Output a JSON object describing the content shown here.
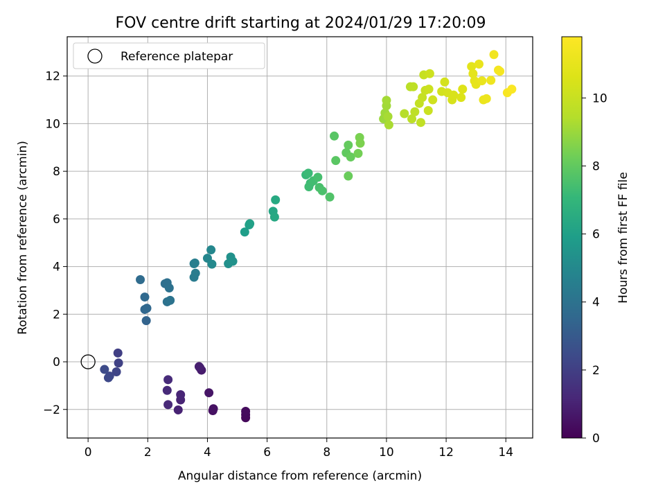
{
  "chart_data": {
    "type": "scatter",
    "title": "FOV centre drift starting at 2024/01/29 17:20:09",
    "xlabel": "Angular distance from reference (arcmin)",
    "ylabel": "Rotation from reference (arcmin)",
    "xlim": [
      -0.7,
      14.9
    ],
    "ylim": [
      -3.2,
      13.65
    ],
    "xticks": [
      0,
      2,
      4,
      6,
      8,
      10,
      12,
      14
    ],
    "yticks": [
      -2,
      0,
      2,
      4,
      6,
      8,
      10,
      12
    ],
    "grid": true,
    "legend": {
      "position": "top-left",
      "entries": [
        "Reference platepar"
      ]
    },
    "reference_point": {
      "x": 0,
      "y": 0,
      "label": "Reference platepar"
    },
    "colorbar": {
      "label": "Hours from first FF file",
      "min": 0,
      "max": 11.8,
      "ticks": [
        0,
        2,
        4,
        6,
        8,
        10
      ],
      "colormap": "viridis"
    },
    "points": [
      {
        "x": 5.28,
        "y": -2.35,
        "h": 0.2
      },
      {
        "x": 5.28,
        "y": -2.22,
        "h": 0.25
      },
      {
        "x": 5.28,
        "y": -2.08,
        "h": 0.3
      },
      {
        "x": 4.18,
        "y": -2.05,
        "h": 0.45
      },
      {
        "x": 4.2,
        "y": -1.97,
        "h": 0.5
      },
      {
        "x": 4.05,
        "y": -1.3,
        "h": 0.6
      },
      {
        "x": 3.8,
        "y": -0.35,
        "h": 0.8
      },
      {
        "x": 3.75,
        "y": -0.25,
        "h": 0.85
      },
      {
        "x": 3.72,
        "y": -0.2,
        "h": 0.9
      },
      {
        "x": 3.02,
        "y": -2.02,
        "h": 1.0
      },
      {
        "x": 3.1,
        "y": -1.6,
        "h": 1.05
      },
      {
        "x": 3.1,
        "y": -1.38,
        "h": 1.1
      },
      {
        "x": 2.68,
        "y": -1.8,
        "h": 1.2
      },
      {
        "x": 2.65,
        "y": -1.2,
        "h": 1.25
      },
      {
        "x": 2.68,
        "y": -0.75,
        "h": 1.3
      },
      {
        "x": 1.0,
        "y": 0.37,
        "h": 2.0
      },
      {
        "x": 1.02,
        "y": -0.05,
        "h": 2.1
      },
      {
        "x": 0.95,
        "y": -0.42,
        "h": 2.2
      },
      {
        "x": 0.72,
        "y": -0.6,
        "h": 2.3
      },
      {
        "x": 0.68,
        "y": -0.67,
        "h": 2.35
      },
      {
        "x": 0.55,
        "y": -0.32,
        "h": 2.45
      },
      {
        "x": 1.95,
        "y": 1.73,
        "h": 3.4
      },
      {
        "x": 1.9,
        "y": 2.2,
        "h": 3.5
      },
      {
        "x": 1.97,
        "y": 2.25,
        "h": 3.55
      },
      {
        "x": 1.9,
        "y": 2.72,
        "h": 3.6
      },
      {
        "x": 1.75,
        "y": 3.45,
        "h": 3.7
      },
      {
        "x": 2.58,
        "y": 3.28,
        "h": 3.85
      },
      {
        "x": 2.65,
        "y": 3.32,
        "h": 3.9
      },
      {
        "x": 2.72,
        "y": 3.1,
        "h": 3.95
      },
      {
        "x": 2.65,
        "y": 2.52,
        "h": 4.0
      },
      {
        "x": 2.75,
        "y": 2.58,
        "h": 4.05
      },
      {
        "x": 3.55,
        "y": 3.55,
        "h": 4.4
      },
      {
        "x": 3.6,
        "y": 3.72,
        "h": 4.45
      },
      {
        "x": 3.55,
        "y": 4.12,
        "h": 4.5
      },
      {
        "x": 3.58,
        "y": 4.15,
        "h": 4.55
      },
      {
        "x": 4.0,
        "y": 4.35,
        "h": 4.9
      },
      {
        "x": 4.12,
        "y": 4.7,
        "h": 4.95
      },
      {
        "x": 4.15,
        "y": 4.1,
        "h": 5.0
      },
      {
        "x": 4.7,
        "y": 4.12,
        "h": 5.3
      },
      {
        "x": 4.78,
        "y": 4.4,
        "h": 5.35
      },
      {
        "x": 4.85,
        "y": 4.22,
        "h": 5.4
      },
      {
        "x": 5.25,
        "y": 5.45,
        "h": 5.9
      },
      {
        "x": 5.4,
        "y": 5.75,
        "h": 6.0
      },
      {
        "x": 5.42,
        "y": 5.8,
        "h": 6.05
      },
      {
        "x": 6.2,
        "y": 6.32,
        "h": 6.3
      },
      {
        "x": 6.25,
        "y": 6.08,
        "h": 6.35
      },
      {
        "x": 6.28,
        "y": 6.8,
        "h": 6.4
      },
      {
        "x": 7.3,
        "y": 7.85,
        "h": 7.1
      },
      {
        "x": 7.38,
        "y": 7.92,
        "h": 7.2
      },
      {
        "x": 7.45,
        "y": 7.5,
        "h": 7.25
      },
      {
        "x": 7.4,
        "y": 7.35,
        "h": 7.3
      },
      {
        "x": 7.55,
        "y": 7.6,
        "h": 7.35
      },
      {
        "x": 7.7,
        "y": 7.75,
        "h": 7.45
      },
      {
        "x": 7.75,
        "y": 7.32,
        "h": 7.5
      },
      {
        "x": 7.85,
        "y": 7.18,
        "h": 7.55
      },
      {
        "x": 8.1,
        "y": 6.92,
        "h": 7.65
      },
      {
        "x": 8.25,
        "y": 9.48,
        "h": 7.8
      },
      {
        "x": 8.3,
        "y": 8.45,
        "h": 7.85
      },
      {
        "x": 8.65,
        "y": 8.78,
        "h": 8.0
      },
      {
        "x": 8.72,
        "y": 9.1,
        "h": 8.05
      },
      {
        "x": 8.8,
        "y": 8.6,
        "h": 8.1
      },
      {
        "x": 8.72,
        "y": 7.8,
        "h": 8.15
      },
      {
        "x": 9.05,
        "y": 8.75,
        "h": 8.35
      },
      {
        "x": 9.1,
        "y": 9.42,
        "h": 8.45
      },
      {
        "x": 9.12,
        "y": 9.18,
        "h": 8.5
      },
      {
        "x": 9.9,
        "y": 10.2,
        "h": 9.0
      },
      {
        "x": 9.95,
        "y": 10.45,
        "h": 9.05
      },
      {
        "x": 10.0,
        "y": 10.75,
        "h": 9.1
      },
      {
        "x": 10.0,
        "y": 10.98,
        "h": 9.15
      },
      {
        "x": 10.05,
        "y": 10.3,
        "h": 9.2
      },
      {
        "x": 10.08,
        "y": 9.95,
        "h": 9.25
      },
      {
        "x": 10.6,
        "y": 10.42,
        "h": 9.5
      },
      {
        "x": 10.8,
        "y": 11.55,
        "h": 9.6
      },
      {
        "x": 10.85,
        "y": 10.2,
        "h": 9.65
      },
      {
        "x": 10.95,
        "y": 10.5,
        "h": 9.7
      },
      {
        "x": 10.9,
        "y": 11.55,
        "h": 9.72
      },
      {
        "x": 11.15,
        "y": 10.05,
        "h": 9.8
      },
      {
        "x": 11.1,
        "y": 10.85,
        "h": 9.85
      },
      {
        "x": 11.2,
        "y": 11.1,
        "h": 9.9
      },
      {
        "x": 11.25,
        "y": 12.05,
        "h": 9.95
      },
      {
        "x": 11.3,
        "y": 11.4,
        "h": 10.0
      },
      {
        "x": 11.4,
        "y": 10.55,
        "h": 10.05
      },
      {
        "x": 11.42,
        "y": 11.45,
        "h": 10.1
      },
      {
        "x": 11.45,
        "y": 12.1,
        "h": 10.15
      },
      {
        "x": 11.55,
        "y": 11.0,
        "h": 10.2
      },
      {
        "x": 11.85,
        "y": 11.35,
        "h": 10.3
      },
      {
        "x": 11.95,
        "y": 11.75,
        "h": 10.35
      },
      {
        "x": 12.05,
        "y": 11.3,
        "h": 10.4
      },
      {
        "x": 12.2,
        "y": 11.0,
        "h": 10.45
      },
      {
        "x": 12.25,
        "y": 11.2,
        "h": 10.5
      },
      {
        "x": 12.5,
        "y": 11.1,
        "h": 10.6
      },
      {
        "x": 12.55,
        "y": 11.45,
        "h": 10.65
      },
      {
        "x": 12.85,
        "y": 12.4,
        "h": 10.85
      },
      {
        "x": 12.9,
        "y": 12.1,
        "h": 10.9
      },
      {
        "x": 12.95,
        "y": 11.8,
        "h": 10.95
      },
      {
        "x": 13.0,
        "y": 11.65,
        "h": 11.0
      },
      {
        "x": 13.1,
        "y": 12.5,
        "h": 11.05
      },
      {
        "x": 13.2,
        "y": 11.8,
        "h": 11.1
      },
      {
        "x": 13.25,
        "y": 11.0,
        "h": 11.15
      },
      {
        "x": 13.35,
        "y": 11.05,
        "h": 11.2
      },
      {
        "x": 13.5,
        "y": 11.82,
        "h": 11.3
      },
      {
        "x": 13.6,
        "y": 12.9,
        "h": 11.35
      },
      {
        "x": 13.75,
        "y": 12.25,
        "h": 11.45
      },
      {
        "x": 13.8,
        "y": 12.2,
        "h": 11.5
      },
      {
        "x": 14.05,
        "y": 11.3,
        "h": 11.6
      },
      {
        "x": 14.2,
        "y": 11.45,
        "h": 11.7
      }
    ]
  }
}
